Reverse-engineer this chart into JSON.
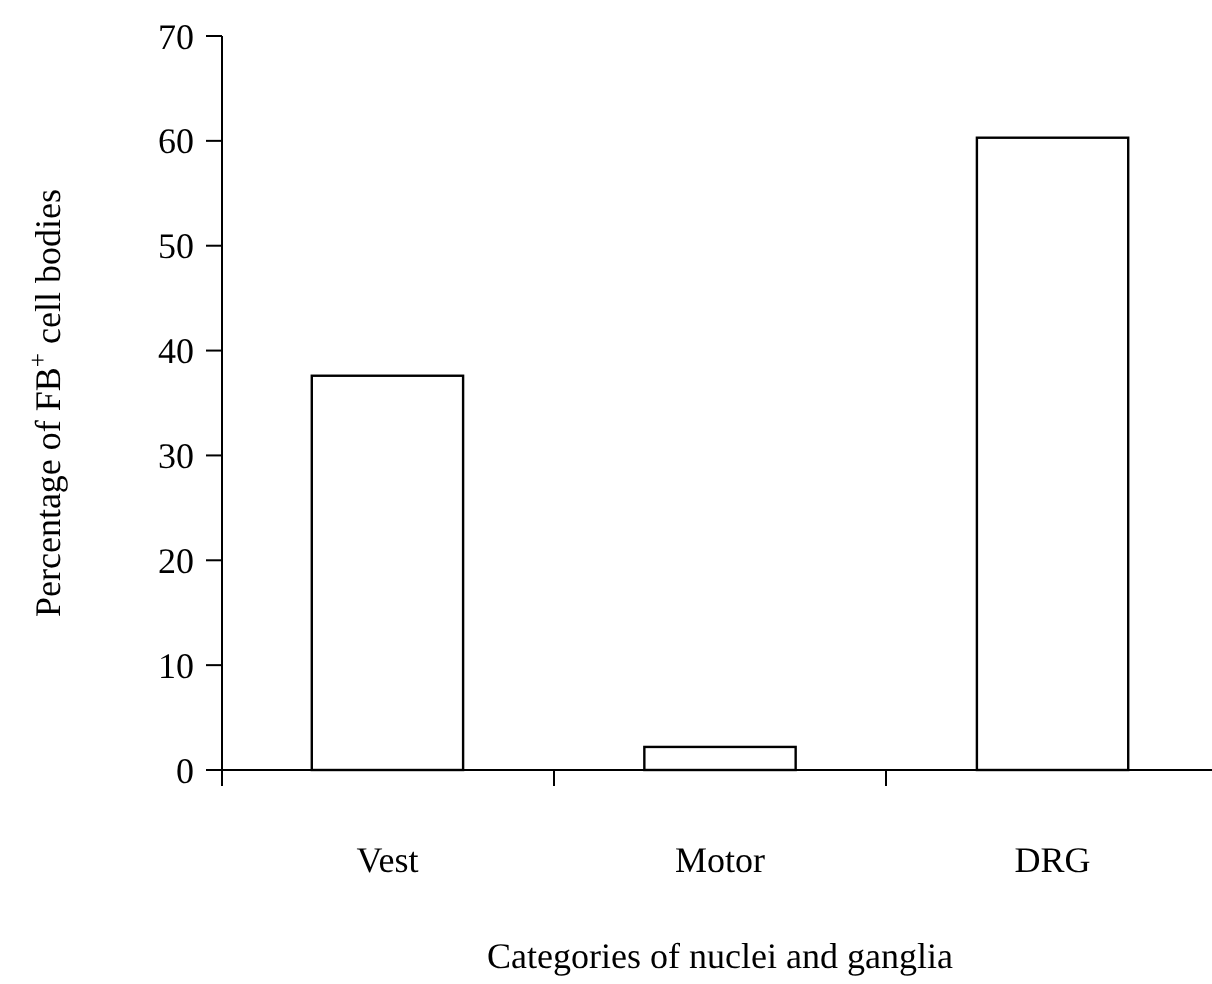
{
  "chart_data": {
    "type": "bar",
    "xlabel": "Categories of nuclei and ganglia",
    "ylabel": "Percentage of FB$^{+}$ cell bodies",
    "categories": [
      "Vest",
      "Motor",
      "DRG"
    ],
    "values": [
      37.6,
      2.2,
      60.3
    ],
    "color": "#ffffff",
    "ylim": [
      0,
      70
    ],
    "yticks": [
      0,
      10,
      20,
      30,
      40,
      50,
      60,
      70
    ],
    "grid": false
  }
}
